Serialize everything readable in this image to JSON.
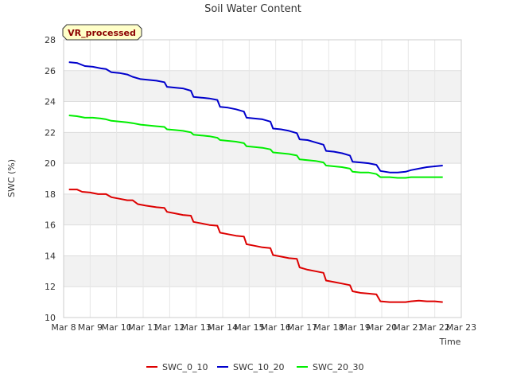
{
  "chart_data": {
    "type": "line",
    "title": "Soil Water Content",
    "xlabel": "Time",
    "ylabel": "SWC (%)",
    "badge": "VR_processed",
    "ylim": [
      10,
      28
    ],
    "yticks": [
      10,
      12,
      14,
      16,
      18,
      20,
      22,
      24,
      26,
      28
    ],
    "xlim": [
      8,
      23
    ],
    "xticks": [
      {
        "v": 8,
        "label": "Mar 8"
      },
      {
        "v": 9,
        "label": "Mar 9"
      },
      {
        "v": 10,
        "label": "Mar 10"
      },
      {
        "v": 11,
        "label": "Mar 11"
      },
      {
        "v": 12,
        "label": "Mar 12"
      },
      {
        "v": 13,
        "label": "Mar 13"
      },
      {
        "v": 14,
        "label": "Mar 14"
      },
      {
        "v": 15,
        "label": "Mar 15"
      },
      {
        "v": 16,
        "label": "Mar 16"
      },
      {
        "v": 17,
        "label": "Mar 17"
      },
      {
        "v": 18,
        "label": "Mar 18"
      },
      {
        "v": 19,
        "label": "Mar 19"
      },
      {
        "v": 20,
        "label": "Mar 20"
      },
      {
        "v": 21,
        "label": "Mar 21"
      },
      {
        "v": 22,
        "label": "Mar 22"
      },
      {
        "v": 23,
        "label": "Mar 23"
      }
    ],
    "grid": true,
    "legend_position": "bottom",
    "series": [
      {
        "name": "SWC_0_10",
        "color": "#dd0000",
        "points": [
          [
            8.2,
            18.3
          ],
          [
            8.5,
            18.3
          ],
          [
            8.7,
            18.15
          ],
          [
            9.0,
            18.1
          ],
          [
            9.3,
            18.0
          ],
          [
            9.6,
            18.0
          ],
          [
            9.8,
            17.8
          ],
          [
            10.1,
            17.7
          ],
          [
            10.4,
            17.6
          ],
          [
            10.6,
            17.6
          ],
          [
            10.8,
            17.35
          ],
          [
            11.1,
            17.25
          ],
          [
            11.5,
            17.15
          ],
          [
            11.8,
            17.1
          ],
          [
            11.9,
            16.85
          ],
          [
            12.2,
            16.75
          ],
          [
            12.5,
            16.65
          ],
          [
            12.8,
            16.6
          ],
          [
            12.9,
            16.2
          ],
          [
            13.2,
            16.1
          ],
          [
            13.5,
            16.0
          ],
          [
            13.8,
            15.95
          ],
          [
            13.9,
            15.5
          ],
          [
            14.2,
            15.4
          ],
          [
            14.5,
            15.3
          ],
          [
            14.8,
            15.25
          ],
          [
            14.9,
            14.75
          ],
          [
            15.2,
            14.65
          ],
          [
            15.5,
            14.55
          ],
          [
            15.8,
            14.5
          ],
          [
            15.9,
            14.05
          ],
          [
            16.2,
            13.95
          ],
          [
            16.5,
            13.85
          ],
          [
            16.8,
            13.8
          ],
          [
            16.9,
            13.25
          ],
          [
            17.2,
            13.1
          ],
          [
            17.5,
            13.0
          ],
          [
            17.8,
            12.9
          ],
          [
            17.9,
            12.4
          ],
          [
            18.2,
            12.3
          ],
          [
            18.5,
            12.2
          ],
          [
            18.8,
            12.1
          ],
          [
            18.9,
            11.7
          ],
          [
            19.2,
            11.6
          ],
          [
            19.5,
            11.55
          ],
          [
            19.8,
            11.5
          ],
          [
            19.95,
            11.05
          ],
          [
            20.3,
            11.0
          ],
          [
            20.6,
            11.0
          ],
          [
            20.9,
            11.0
          ],
          [
            21.1,
            11.05
          ],
          [
            21.4,
            11.1
          ],
          [
            21.7,
            11.05
          ],
          [
            22.0,
            11.05
          ],
          [
            22.3,
            11.0
          ]
        ]
      },
      {
        "name": "SWC_10_20",
        "color": "#0000cc",
        "points": [
          [
            8.2,
            26.55
          ],
          [
            8.5,
            26.5
          ],
          [
            8.8,
            26.3
          ],
          [
            9.1,
            26.25
          ],
          [
            9.4,
            26.15
          ],
          [
            9.6,
            26.1
          ],
          [
            9.8,
            25.9
          ],
          [
            10.1,
            25.85
          ],
          [
            10.4,
            25.75
          ],
          [
            10.6,
            25.6
          ],
          [
            10.9,
            25.45
          ],
          [
            11.2,
            25.4
          ],
          [
            11.5,
            25.35
          ],
          [
            11.8,
            25.25
          ],
          [
            11.9,
            24.95
          ],
          [
            12.2,
            24.9
          ],
          [
            12.5,
            24.85
          ],
          [
            12.8,
            24.7
          ],
          [
            12.9,
            24.3
          ],
          [
            13.2,
            24.25
          ],
          [
            13.5,
            24.2
          ],
          [
            13.8,
            24.1
          ],
          [
            13.9,
            23.65
          ],
          [
            14.2,
            23.6
          ],
          [
            14.5,
            23.5
          ],
          [
            14.8,
            23.35
          ],
          [
            14.9,
            22.95
          ],
          [
            15.2,
            22.9
          ],
          [
            15.5,
            22.85
          ],
          [
            15.8,
            22.7
          ],
          [
            15.9,
            22.25
          ],
          [
            16.2,
            22.2
          ],
          [
            16.5,
            22.1
          ],
          [
            16.8,
            21.95
          ],
          [
            16.9,
            21.55
          ],
          [
            17.2,
            21.5
          ],
          [
            17.5,
            21.35
          ],
          [
            17.8,
            21.2
          ],
          [
            17.9,
            20.8
          ],
          [
            18.2,
            20.75
          ],
          [
            18.5,
            20.65
          ],
          [
            18.8,
            20.5
          ],
          [
            18.9,
            20.1
          ],
          [
            19.2,
            20.05
          ],
          [
            19.5,
            20.0
          ],
          [
            19.8,
            19.9
          ],
          [
            19.95,
            19.5
          ],
          [
            20.3,
            19.4
          ],
          [
            20.6,
            19.4
          ],
          [
            20.9,
            19.45
          ],
          [
            21.1,
            19.55
          ],
          [
            21.4,
            19.65
          ],
          [
            21.7,
            19.75
          ],
          [
            22.0,
            19.8
          ],
          [
            22.3,
            19.85
          ]
        ]
      },
      {
        "name": "SWC_20_30",
        "color": "#00ee00",
        "points": [
          [
            8.2,
            23.1
          ],
          [
            8.5,
            23.05
          ],
          [
            8.8,
            22.95
          ],
          [
            9.1,
            22.95
          ],
          [
            9.4,
            22.9
          ],
          [
            9.6,
            22.85
          ],
          [
            9.8,
            22.75
          ],
          [
            10.1,
            22.7
          ],
          [
            10.4,
            22.65
          ],
          [
            10.6,
            22.6
          ],
          [
            10.9,
            22.5
          ],
          [
            11.2,
            22.45
          ],
          [
            11.5,
            22.4
          ],
          [
            11.8,
            22.35
          ],
          [
            11.9,
            22.2
          ],
          [
            12.2,
            22.15
          ],
          [
            12.5,
            22.1
          ],
          [
            12.8,
            22.0
          ],
          [
            12.9,
            21.85
          ],
          [
            13.2,
            21.8
          ],
          [
            13.5,
            21.75
          ],
          [
            13.8,
            21.65
          ],
          [
            13.9,
            21.5
          ],
          [
            14.2,
            21.45
          ],
          [
            14.5,
            21.4
          ],
          [
            14.8,
            21.3
          ],
          [
            14.9,
            21.1
          ],
          [
            15.2,
            21.05
          ],
          [
            15.5,
            21.0
          ],
          [
            15.8,
            20.9
          ],
          [
            15.9,
            20.7
          ],
          [
            16.2,
            20.65
          ],
          [
            16.5,
            20.6
          ],
          [
            16.8,
            20.5
          ],
          [
            16.9,
            20.25
          ],
          [
            17.2,
            20.2
          ],
          [
            17.5,
            20.15
          ],
          [
            17.8,
            20.05
          ],
          [
            17.9,
            19.85
          ],
          [
            18.2,
            19.8
          ],
          [
            18.5,
            19.75
          ],
          [
            18.8,
            19.65
          ],
          [
            18.9,
            19.45
          ],
          [
            19.2,
            19.4
          ],
          [
            19.5,
            19.4
          ],
          [
            19.8,
            19.3
          ],
          [
            19.95,
            19.1
          ],
          [
            20.3,
            19.1
          ],
          [
            20.6,
            19.05
          ],
          [
            20.9,
            19.05
          ],
          [
            21.1,
            19.1
          ],
          [
            21.4,
            19.1
          ],
          [
            21.7,
            19.1
          ],
          [
            22.0,
            19.1
          ],
          [
            22.3,
            19.1
          ]
        ]
      }
    ]
  }
}
